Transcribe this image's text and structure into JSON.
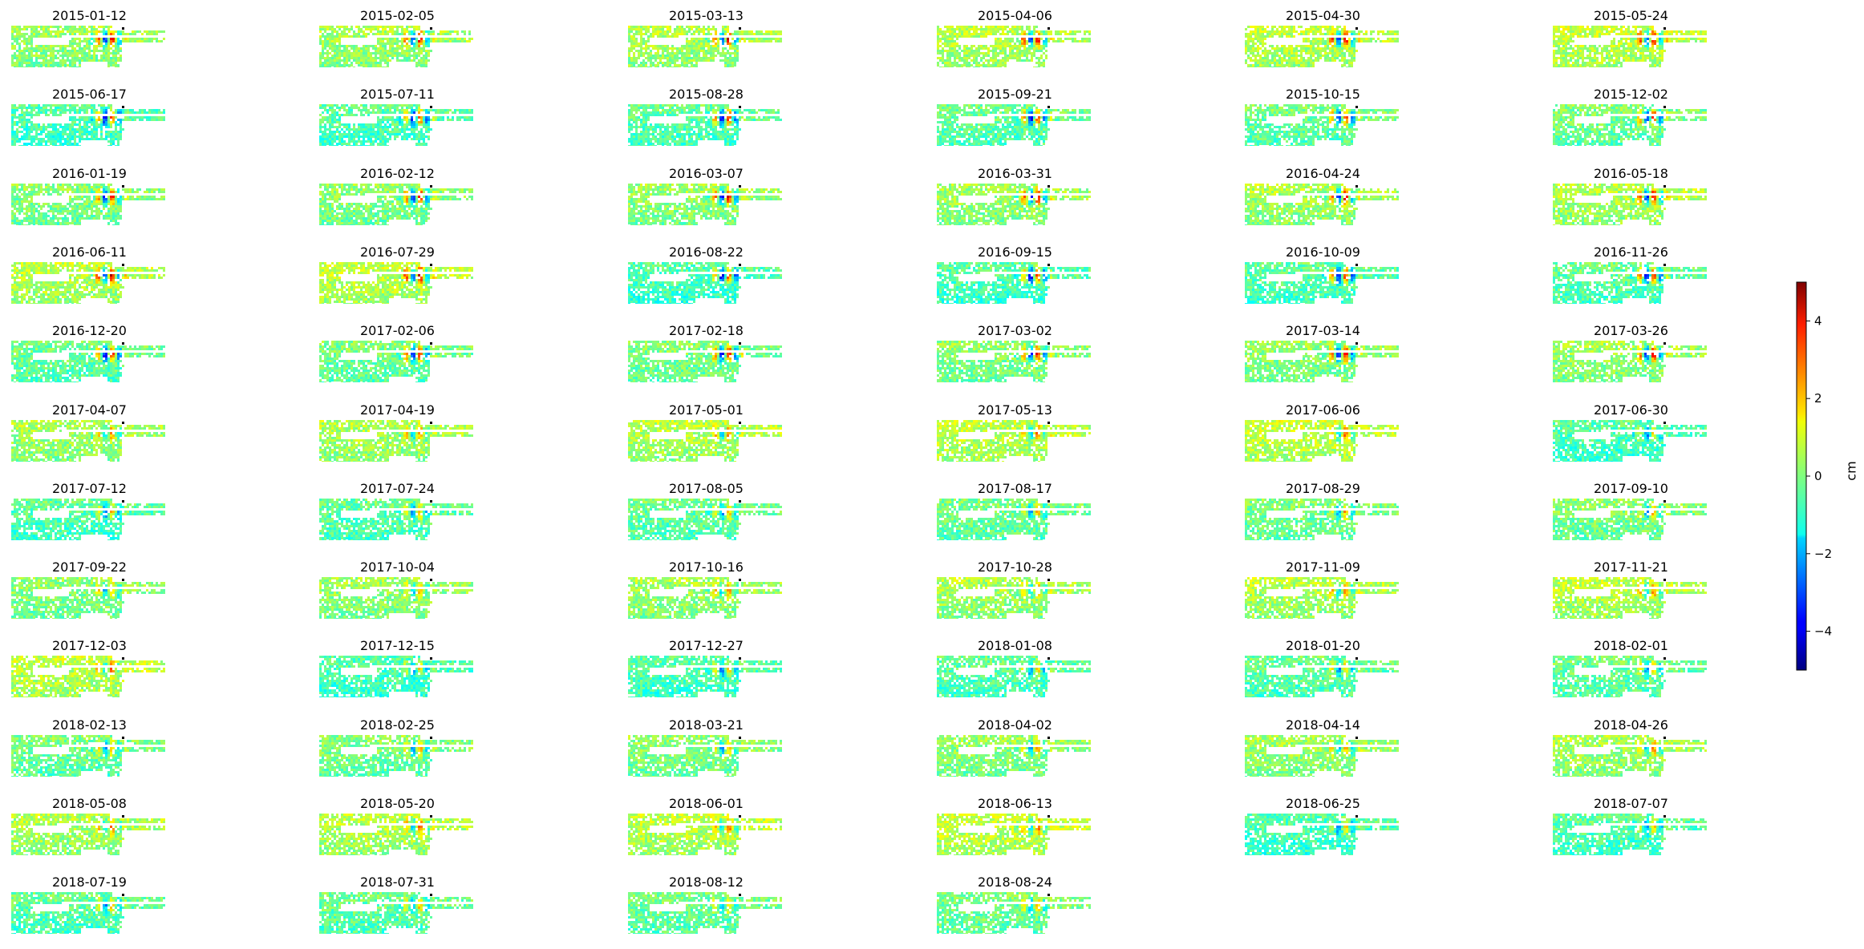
{
  "chart_data": {
    "type": "heatmap",
    "dates": [
      "2015-01-12",
      "2015-02-05",
      "2015-03-13",
      "2015-04-06",
      "2015-04-30",
      "2015-05-24",
      "2015-06-17",
      "2015-07-11",
      "2015-08-28",
      "2015-09-21",
      "2015-10-15",
      "2015-12-02",
      "2016-01-19",
      "2016-02-12",
      "2016-03-07",
      "2016-03-31",
      "2016-04-24",
      "2016-05-18",
      "2016-06-11",
      "2016-07-29",
      "2016-08-22",
      "2016-09-15",
      "2016-10-09",
      "2016-11-26",
      "2016-12-20",
      "2017-02-06",
      "2017-02-18",
      "2017-03-02",
      "2017-03-14",
      "2017-03-26",
      "2017-04-07",
      "2017-04-19",
      "2017-05-01",
      "2017-05-13",
      "2017-06-06",
      "2017-06-30",
      "2017-07-12",
      "2017-07-24",
      "2017-08-05",
      "2017-08-17",
      "2017-08-29",
      "2017-09-10",
      "2017-09-22",
      "2017-10-04",
      "2017-10-16",
      "2017-10-28",
      "2017-11-09",
      "2017-11-21",
      "2017-12-03",
      "2017-12-15",
      "2017-12-27",
      "2018-01-08",
      "2018-01-20",
      "2018-02-01",
      "2018-02-13",
      "2018-02-25",
      "2018-03-21",
      "2018-04-02",
      "2018-04-14",
      "2018-04-26",
      "2018-05-08",
      "2018-05-20",
      "2018-06-01",
      "2018-06-13",
      "2018-06-25",
      "2018-07-07",
      "2018-07-19",
      "2018-07-31",
      "2018-08-12",
      "2018-08-24"
    ],
    "grid": {
      "rows": 12,
      "cols": 6
    },
    "colormap": "jet",
    "colorbar": {
      "label": "cm",
      "range": [
        -5,
        5
      ],
      "ticks": [
        -4,
        -2,
        0,
        2,
        4
      ],
      "tick_labels": [
        "−4",
        "−2",
        "0",
        "2",
        "4"
      ]
    }
  }
}
